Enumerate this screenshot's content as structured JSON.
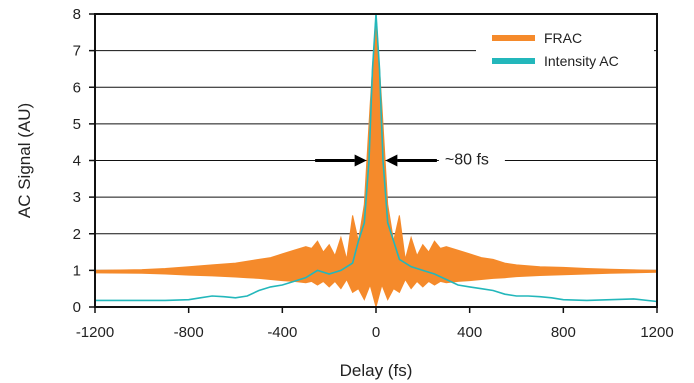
{
  "chart_data": {
    "type": "line",
    "title": "",
    "xlabel": "Delay (fs)",
    "ylabel": "AC Signal (AU)",
    "xlim": [
      -1200,
      1200
    ],
    "ylim": [
      0,
      8
    ],
    "xticks": [
      -1200,
      -800,
      -400,
      0,
      400,
      800,
      1200
    ],
    "yticks": [
      0,
      1,
      2,
      3,
      4,
      5,
      6,
      7,
      8
    ],
    "grid": "horizontal",
    "legend": "top-right",
    "series": [
      {
        "name": "FRAC",
        "kind": "band",
        "color": "#F58A2B",
        "x": [
          -1200,
          -1000,
          -900,
          -800,
          -700,
          -600,
          -550,
          -500,
          -450,
          -400,
          -350,
          -300,
          -275,
          -250,
          -225,
          -200,
          -175,
          -150,
          -125,
          -100,
          -75,
          -50,
          -25,
          0,
          25,
          50,
          75,
          100,
          125,
          150,
          175,
          200,
          225,
          250,
          275,
          300,
          350,
          400,
          450,
          500,
          550,
          600,
          700,
          800,
          900,
          1000,
          1200
        ],
        "upper": [
          1.0,
          1.02,
          1.05,
          1.1,
          1.15,
          1.2,
          1.25,
          1.3,
          1.35,
          1.45,
          1.55,
          1.65,
          1.6,
          1.8,
          1.5,
          1.7,
          1.4,
          1.9,
          1.3,
          2.5,
          1.8,
          2.8,
          5.5,
          8.0,
          5.5,
          2.8,
          1.8,
          2.5,
          1.3,
          1.9,
          1.4,
          1.7,
          1.5,
          1.8,
          1.6,
          1.65,
          1.55,
          1.45,
          1.35,
          1.3,
          1.2,
          1.15,
          1.1,
          1.08,
          1.05,
          1.03,
          1.0
        ],
        "lower": [
          0.93,
          0.92,
          0.9,
          0.87,
          0.85,
          0.82,
          0.8,
          0.78,
          0.75,
          0.72,
          0.7,
          0.66,
          0.7,
          0.6,
          0.7,
          0.55,
          0.7,
          0.5,
          0.75,
          0.4,
          0.5,
          0.2,
          0.6,
          0.0,
          0.6,
          0.2,
          0.5,
          0.4,
          0.75,
          0.5,
          0.7,
          0.55,
          0.7,
          0.6,
          0.7,
          0.66,
          0.7,
          0.72,
          0.75,
          0.78,
          0.8,
          0.83,
          0.86,
          0.88,
          0.9,
          0.92,
          0.95
        ]
      },
      {
        "name": "Intensity AC",
        "kind": "line",
        "color": "#23B7BB",
        "x": [
          -1200,
          -1000,
          -900,
          -800,
          -750,
          -700,
          -650,
          -600,
          -550,
          -500,
          -450,
          -400,
          -350,
          -300,
          -250,
          -200,
          -150,
          -100,
          -75,
          -50,
          -30,
          -15,
          0,
          15,
          30,
          50,
          75,
          100,
          150,
          200,
          250,
          300,
          350,
          400,
          450,
          500,
          550,
          600,
          650,
          700,
          750,
          800,
          900,
          1000,
          1100,
          1200
        ],
        "y": [
          0.18,
          0.18,
          0.18,
          0.2,
          0.25,
          0.3,
          0.28,
          0.25,
          0.3,
          0.45,
          0.55,
          0.6,
          0.7,
          0.8,
          1.0,
          0.9,
          1.0,
          1.2,
          1.8,
          2.3,
          4.0,
          6.5,
          8.0,
          6.5,
          4.0,
          2.3,
          1.8,
          1.3,
          1.1,
          1.0,
          0.9,
          0.75,
          0.6,
          0.55,
          0.5,
          0.45,
          0.35,
          0.3,
          0.3,
          0.28,
          0.25,
          0.2,
          0.18,
          0.2,
          0.22,
          0.15
        ]
      }
    ],
    "annotations": [
      {
        "text": "~80 fs",
        "y": 4,
        "arrow_left_from": -260,
        "arrow_left_to": -40,
        "arrow_right_from": 260,
        "arrow_right_to": 40
      }
    ],
    "legend_entries": [
      "FRAC",
      "Intensity AC"
    ]
  }
}
